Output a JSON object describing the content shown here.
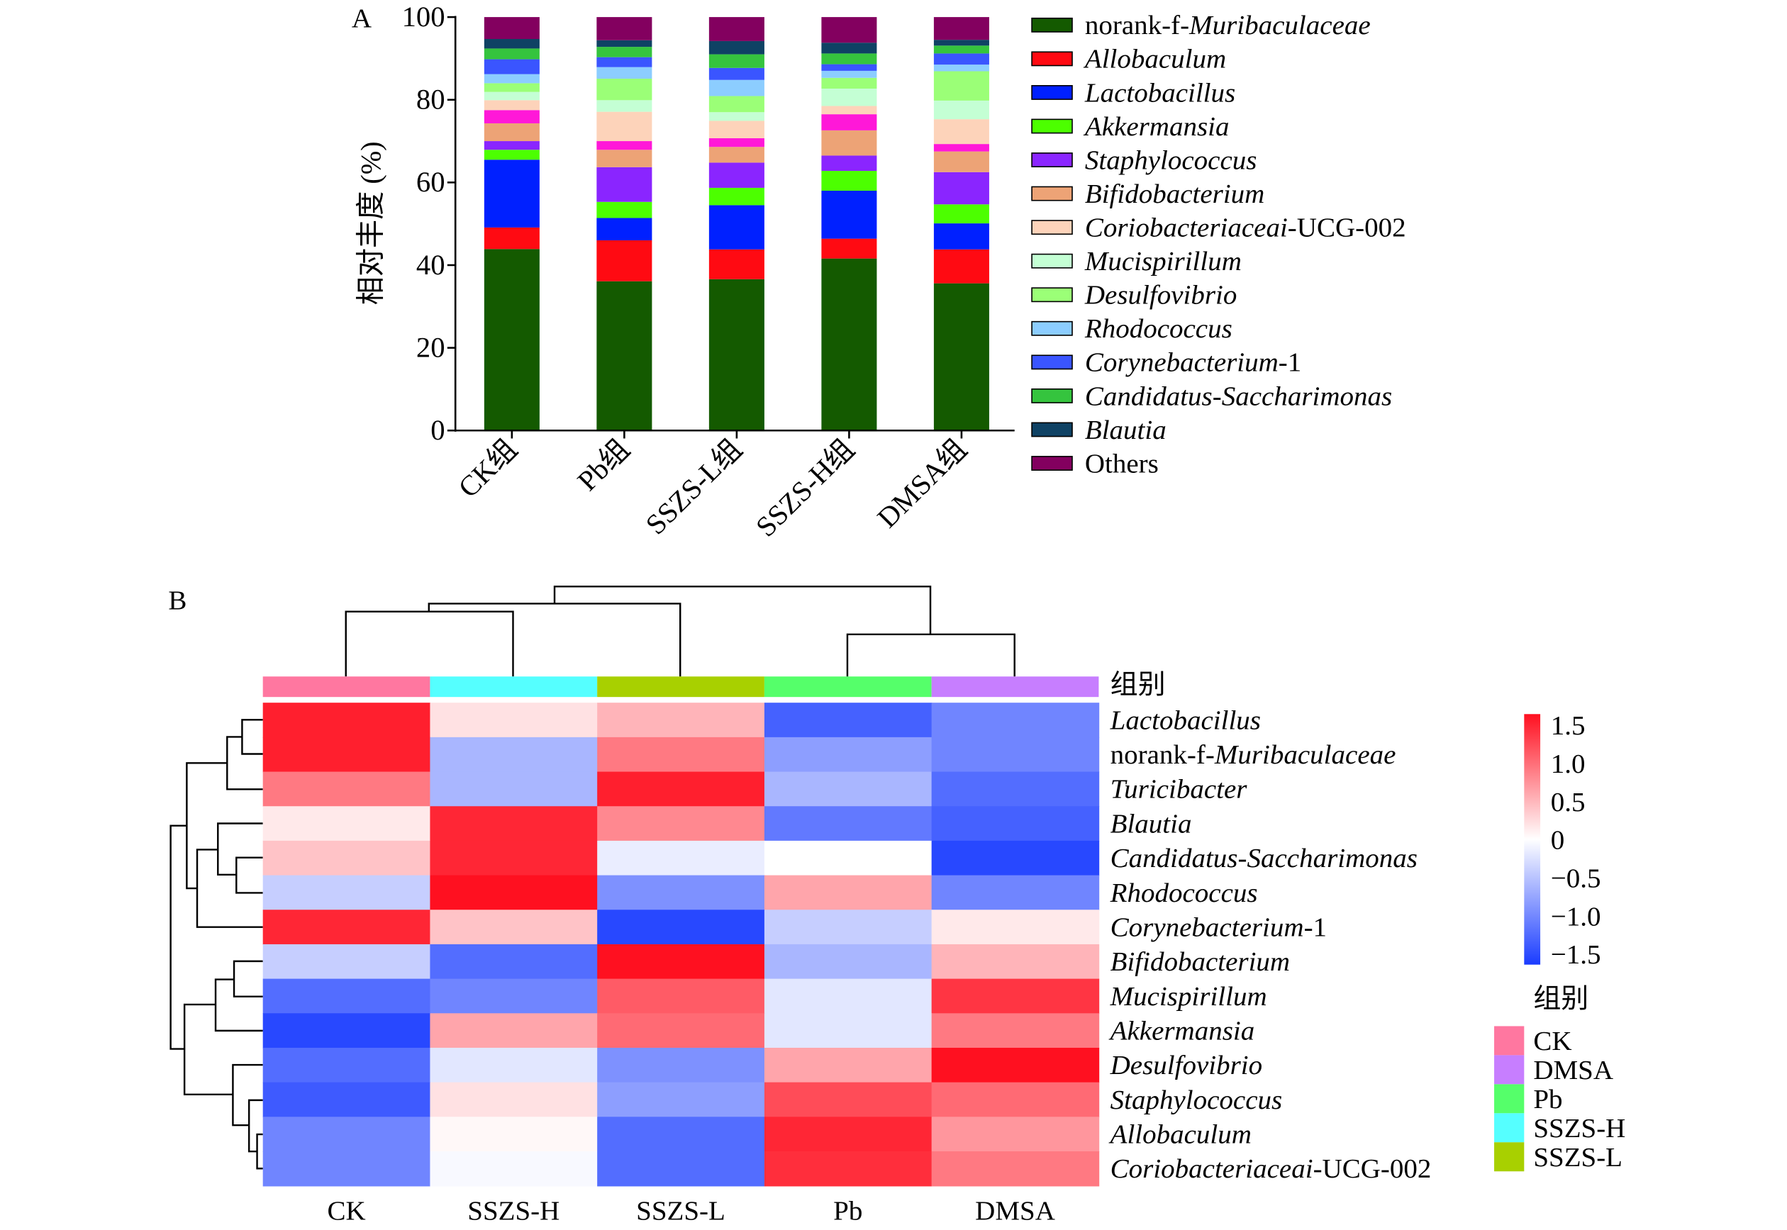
{
  "chart_data": [
    {
      "type": "bar",
      "stacked": true,
      "panel_label": "A",
      "ylabel": "相对丰度 (%)",
      "ylim": [
        0,
        100
      ],
      "yticks": [
        "0",
        "20",
        "40",
        "60",
        "80",
        "100"
      ],
      "categories": [
        "CK组",
        "Pb组",
        "SSZS-L组",
        "SSZS-H组",
        "DMSA组"
      ],
      "legend_position": "right",
      "series": [
        {
          "name_prefix": "norank-f-",
          "name_italic": "Muribaculaceae",
          "name_suffix": "",
          "color": "#145a00",
          "values": [
            43.9,
            36.1,
            36.6,
            41.6,
            35.6
          ]
        },
        {
          "name_prefix": "",
          "name_italic": "Allobaculum",
          "name_suffix": "",
          "color": "#ff0a12",
          "values": [
            5.2,
            9.9,
            7.2,
            4.8,
            8.2
          ]
        },
        {
          "name_prefix": "",
          "name_italic": "Lactobacillus",
          "name_suffix": "",
          "color": "#0020ff",
          "values": [
            16.4,
            5.4,
            10.7,
            11.6,
            6.3
          ]
        },
        {
          "name_prefix": "",
          "name_italic": "Akkermansia",
          "name_suffix": "",
          "color": "#4cff00",
          "values": [
            2.4,
            3.9,
            4.2,
            4.8,
            4.6
          ]
        },
        {
          "name_prefix": "",
          "name_italic": "Staphylococcus",
          "name_suffix": "",
          "color": "#8a25ff",
          "values": [
            2.1,
            8.4,
            6.1,
            3.7,
            7.8
          ]
        },
        {
          "name_prefix": "",
          "name_italic": "Bifidobacterium",
          "name_suffix": "",
          "color": "#eda376",
          "values": [
            4.3,
            4.2,
            3.8,
            6.1,
            5.0
          ]
        },
        {
          "color": "#ff18d8",
          "values": [
            3.2,
            2.1,
            2.1,
            3.9,
            1.8
          ]
        },
        {
          "name_prefix": "",
          "name_italic": "Coriobacteriaceai",
          "name_suffix": "-UCG-002",
          "color": "#fdd3ba",
          "values": [
            2.4,
            7.1,
            4.2,
            2.0,
            6.0
          ]
        },
        {
          "name_prefix": "",
          "name_italic": "Mucispirillum",
          "name_suffix": "",
          "color": "#c4ffd4",
          "values": [
            2.0,
            2.8,
            2.1,
            4.2,
            4.5
          ]
        },
        {
          "name_prefix": "",
          "name_italic": "Desulfovibrio",
          "name_suffix": "",
          "color": "#9bff77",
          "values": [
            2.1,
            5.2,
            3.9,
            2.6,
            7.1
          ]
        },
        {
          "name_prefix": "",
          "name_italic": "Rhodococcus",
          "name_suffix": "",
          "color": "#8ccdff",
          "values": [
            2.2,
            2.8,
            3.9,
            1.7,
            1.6
          ]
        },
        {
          "name_prefix": "",
          "name_italic": "Corynebacterium",
          "name_suffix": "-1",
          "color": "#3a55ff",
          "values": [
            3.6,
            2.4,
            2.9,
            1.6,
            2.7
          ]
        },
        {
          "name_prefix": "",
          "name_italic": "Candidatus-Saccharimonas",
          "name_suffix": "",
          "color": "#35c43e",
          "values": [
            2.6,
            2.5,
            3.3,
            2.6,
            1.9
          ]
        },
        {
          "name_prefix": "",
          "name_italic": "Blautia",
          "name_suffix": "",
          "color": "#0f4264",
          "values": [
            2.3,
            1.6,
            3.2,
            2.6,
            1.4
          ]
        },
        {
          "name_prefix": "Others",
          "name_italic": "",
          "name_suffix": "",
          "color": "#83005f",
          "values": [
            5.3,
            5.6,
            5.8,
            6.2,
            5.5
          ]
        }
      ]
    },
    {
      "type": "heatmap",
      "panel_label": "B",
      "annotation_row_label": "组别",
      "columns": [
        "CK",
        "SSZS-H",
        "SSZS-L",
        "Pb",
        "DMSA"
      ],
      "column_group_colors": [
        "#ff77a0",
        "#55ffff",
        "#a8d000",
        "#55ff6a",
        "#c77eff"
      ],
      "rows": [
        {
          "name_prefix": "",
          "name_italic": "Lactobacillus",
          "name_suffix": ""
        },
        {
          "name_prefix": "norank-f-",
          "name_italic": "Muribaculaceae",
          "name_suffix": ""
        },
        {
          "name_prefix": "",
          "name_italic": "Turicibacter",
          "name_suffix": ""
        },
        {
          "name_prefix": "",
          "name_italic": "Blautia",
          "name_suffix": ""
        },
        {
          "name_prefix": "",
          "name_italic": "Candidatus-Saccharimonas",
          "name_suffix": ""
        },
        {
          "name_prefix": "",
          "name_italic": "Rhodococcus",
          "name_suffix": ""
        },
        {
          "name_prefix": "",
          "name_italic": "Corynebacterium",
          "name_suffix": "-1"
        },
        {
          "name_prefix": "",
          "name_italic": "Bifidobacterium",
          "name_suffix": ""
        },
        {
          "name_prefix": "",
          "name_italic": "Mucispirillum",
          "name_suffix": ""
        },
        {
          "name_prefix": "",
          "name_italic": "Akkermansia",
          "name_suffix": ""
        },
        {
          "name_prefix": "",
          "name_italic": "Desulfovibrio",
          "name_suffix": ""
        },
        {
          "name_prefix": "",
          "name_italic": "Staphylococcus",
          "name_suffix": ""
        },
        {
          "name_prefix": "",
          "name_italic": "Allobaculum",
          "name_suffix": ""
        },
        {
          "name_prefix": "",
          "name_italic": "Coriobacteriaceai",
          "name_suffix": "-UCG-002"
        }
      ],
      "values": [
        [
          1.5,
          0.2,
          0.5,
          -1.3,
          -1.0
        ],
        [
          1.5,
          -0.6,
          0.9,
          -0.8,
          -1.0
        ],
        [
          0.9,
          -0.6,
          1.5,
          -0.6,
          -1.2
        ],
        [
          0.15,
          1.45,
          0.8,
          -1.1,
          -1.3
        ],
        [
          0.4,
          1.45,
          -0.15,
          0.0,
          -1.5
        ],
        [
          -0.4,
          1.6,
          -0.9,
          0.6,
          -1.0
        ],
        [
          1.45,
          0.4,
          -1.5,
          -0.4,
          0.15
        ],
        [
          -0.4,
          -1.2,
          1.6,
          -0.6,
          0.5
        ],
        [
          -1.2,
          -1.0,
          1.1,
          -0.2,
          1.35
        ],
        [
          -1.5,
          0.6,
          1.0,
          -0.2,
          0.9
        ],
        [
          -1.2,
          -0.2,
          -0.9,
          0.6,
          1.6
        ],
        [
          -1.35,
          0.2,
          -0.8,
          1.2,
          1.0
        ],
        [
          -1.0,
          0.05,
          -1.2,
          1.45,
          0.7
        ],
        [
          -1.0,
          -0.05,
          -1.2,
          1.4,
          0.9
        ]
      ],
      "colorbar": {
        "range": [
          -1.6,
          1.6
        ],
        "low_color": "#1a3cff",
        "mid_color": "#ffffff",
        "high_color": "#ff1020",
        "ticks": [
          1.5,
          1.0,
          0.5,
          0,
          -0.5,
          -1.0,
          -1.5
        ],
        "tick_labels": [
          "1.5",
          "1.0",
          "0.5",
          "0",
          "−0.5",
          "−1.0",
          "−1.5"
        ]
      },
      "group_legend": {
        "title": "组别",
        "groups": [
          {
            "name": "CK",
            "color": "#ff77a0"
          },
          {
            "name": "DMSA",
            "color": "#c77eff"
          },
          {
            "name": "Pb",
            "color": "#55ff6a"
          },
          {
            "name": "SSZS-H",
            "color": "#55ffff"
          },
          {
            "name": "SSZS-L",
            "color": "#a8d000"
          }
        ]
      },
      "row_dendrogram": true,
      "column_dendrogram": true
    }
  ]
}
